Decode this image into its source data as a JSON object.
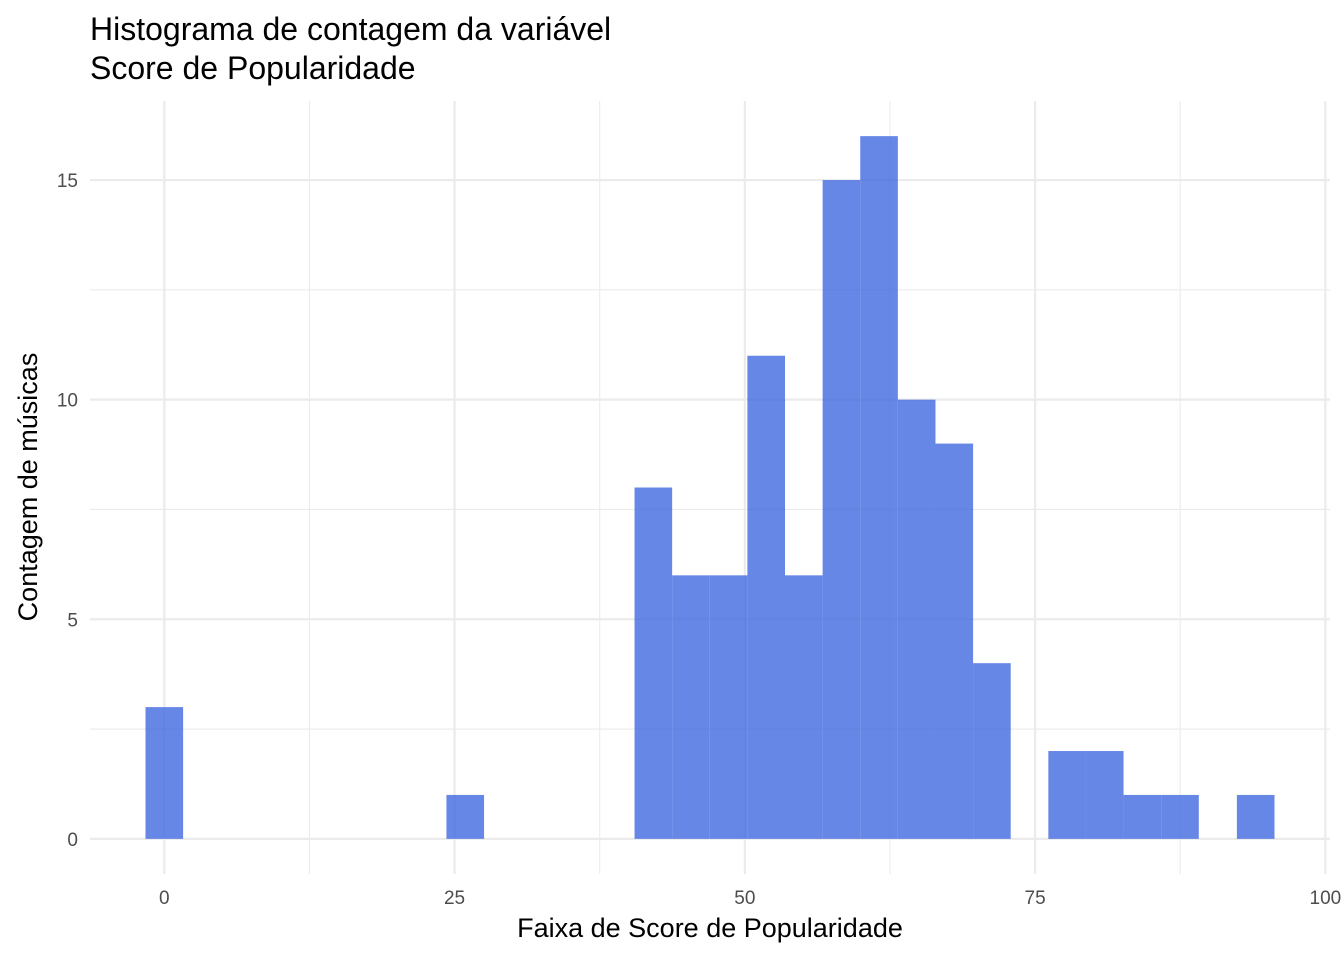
{
  "chart_data": {
    "type": "bar",
    "title": "Histograma de contagem da variável",
    "subtitle": "Score de Popularidade",
    "xlabel": "Faixa de Score de Popularidade",
    "ylabel": "Contagem de músicas",
    "xlim": [
      -6.4,
      100.4
    ],
    "ylim": [
      -0.8,
      16.8
    ],
    "x_ticks": [
      0,
      25,
      50,
      75,
      100
    ],
    "x_tick_labels": [
      "0",
      "25",
      "50",
      "75",
      "100"
    ],
    "y_ticks": [
      0,
      5,
      10,
      15
    ],
    "y_tick_labels": [
      "0",
      "5",
      "10",
      "15"
    ],
    "grid": true,
    "legend": "none",
    "bin_width": 3.24,
    "bins": [
      {
        "x": 0.0,
        "count": 3
      },
      {
        "x": 25.92,
        "count": 1
      },
      {
        "x": 42.12,
        "count": 8
      },
      {
        "x": 45.36,
        "count": 6
      },
      {
        "x": 48.6,
        "count": 6
      },
      {
        "x": 51.84,
        "count": 11
      },
      {
        "x": 55.08,
        "count": 6
      },
      {
        "x": 58.32,
        "count": 15
      },
      {
        "x": 61.56,
        "count": 16
      },
      {
        "x": 64.8,
        "count": 10
      },
      {
        "x": 68.04,
        "count": 9
      },
      {
        "x": 71.28,
        "count": 4
      },
      {
        "x": 77.76,
        "count": 2
      },
      {
        "x": 81.0,
        "count": 2
      },
      {
        "x": 84.24,
        "count": 1
      },
      {
        "x": 87.48,
        "count": 1
      },
      {
        "x": 94.0,
        "count": 1
      }
    ],
    "bar_color": "#4169E1",
    "bar_opacity": 0.8
  }
}
